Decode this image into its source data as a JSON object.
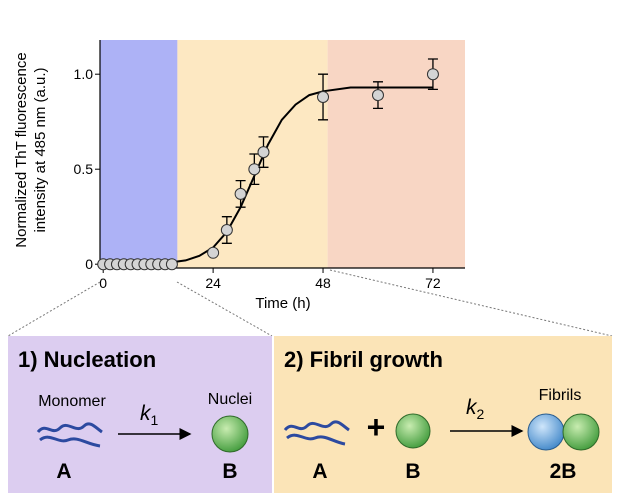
{
  "chart_data": {
    "type": "scatter",
    "y_label": [
      "Normalized ThT fluorescence",
      "intensity at 485 nm (a.u.)"
    ],
    "x_label": "Time (h)",
    "xlim": [
      -0.7,
      79
    ],
    "xticks": [
      0,
      24,
      48,
      72
    ],
    "ylim": [
      -0.02,
      1.18
    ],
    "yticks": [
      0,
      0.5,
      {
        "value": 1,
        "label": "1.0"
      }
    ],
    "shaded_regions": [
      {
        "x0": -0.7,
        "x1": 16.2,
        "color": "#adb2f6"
      },
      {
        "x0": 16.2,
        "x1": 49,
        "color": "#fde8c2"
      },
      {
        "x0": 49,
        "x1": 79,
        "color": "#f8d6c4"
      }
    ],
    "points": {
      "color": "#d4d4d4",
      "x": [
        0,
        1.5,
        3,
        4.5,
        6,
        7.5,
        9,
        10.5,
        12,
        13.5,
        15,
        24,
        27,
        30,
        33,
        35,
        48,
        60,
        72
      ],
      "y": [
        0,
        0,
        0,
        0,
        0,
        0,
        0,
        0,
        0,
        0,
        0,
        0.06,
        0.18,
        0.37,
        0.5,
        0.59,
        0.88,
        0.89,
        1.0
      ],
      "errors": [
        null,
        null,
        null,
        null,
        null,
        null,
        null,
        null,
        null,
        null,
        null,
        null,
        0.07,
        0.07,
        0.08,
        0.08,
        0.12,
        0.07,
        0.08
      ]
    },
    "fit": {
      "color": "#000000",
      "x": [
        0,
        15,
        18,
        21,
        24,
        27,
        30,
        33,
        36,
        39,
        42,
        45,
        48,
        54,
        66,
        72
      ],
      "y": [
        0,
        0.01,
        0.02,
        0.044,
        0.088,
        0.17,
        0.3,
        0.465,
        0.63,
        0.76,
        0.84,
        0.89,
        0.91,
        0.93,
        0.93,
        0.93
      ]
    }
  },
  "diagram": {
    "nucleation": {
      "title": "1) Nucleation",
      "left_label": "Monomer",
      "rate": {
        "symbol": "k",
        "subscript": "1"
      },
      "right_label": "Nuclei",
      "left_species": "A",
      "right_species": "B"
    },
    "growth": {
      "title": "2) Fibril growth",
      "plus": "+",
      "rate": {
        "symbol": "k",
        "subscript": "2"
      },
      "right_label": "Fibrils",
      "left_species": "A",
      "middle_species": "B",
      "right_species": "2B"
    }
  }
}
